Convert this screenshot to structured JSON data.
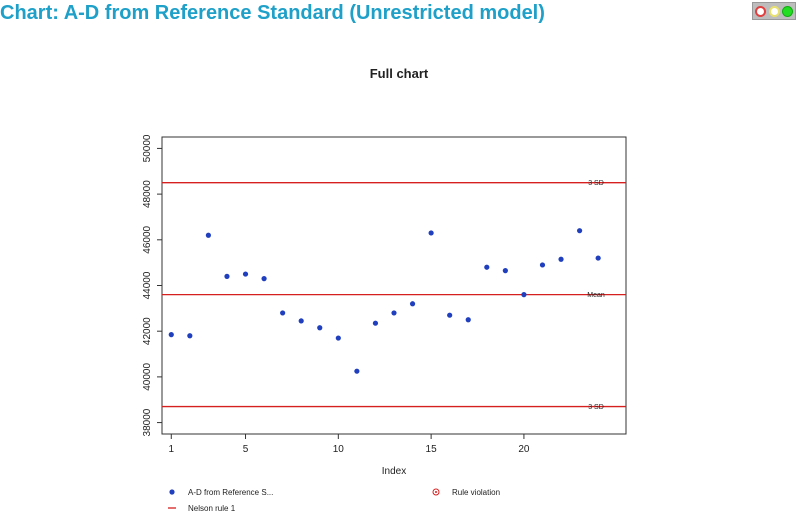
{
  "header": {
    "title": "Chart: A-D from Reference Standard (Unrestricted model)",
    "status_colors": [
      "#ffffff",
      "#ffffff",
      "#22dd22"
    ]
  },
  "chart_data": {
    "type": "scatter",
    "title": "Full chart",
    "xlabel": "Index",
    "ylabel": "",
    "xlim": [
      0.5,
      25.5
    ],
    "ylim": [
      37500,
      50500
    ],
    "x_ticks": [
      1,
      5,
      10,
      15,
      20
    ],
    "y_ticks": [
      38000,
      40000,
      42000,
      44000,
      46000,
      48000,
      50000
    ],
    "series": [
      {
        "name": "A-D from Reference S...",
        "color": "#1f3fbf",
        "x": [
          1,
          2,
          3,
          4,
          5,
          6,
          7,
          8,
          9,
          10,
          11,
          12,
          13,
          14,
          15,
          16,
          17,
          18,
          19,
          20,
          21,
          22,
          23,
          24
        ],
        "y": [
          41850,
          41800,
          46200,
          44400,
          44500,
          44300,
          42800,
          42450,
          42150,
          41700,
          40250,
          42350,
          42800,
          43200,
          46300,
          42700,
          42500,
          44800,
          44650,
          43600,
          44900,
          45150,
          46400,
          45200
        ]
      }
    ],
    "reference_lines": [
      {
        "label": "3 SD",
        "y": 48500,
        "color": "#d62020"
      },
      {
        "label": "Mean",
        "y": 43600,
        "color": "#d62020"
      },
      {
        "label": "3 SD",
        "y": 38700,
        "color": "#d62020"
      }
    ],
    "legend": [
      {
        "label": "A-D from Reference S...",
        "kind": "dot",
        "color": "#1f3fbf"
      },
      {
        "label": "Rule violation",
        "kind": "ring",
        "color": "#d62020"
      },
      {
        "label": "Nelson rule 1",
        "kind": "line",
        "color": "#d62020"
      }
    ],
    "legend_position": "bottom",
    "grid": false
  }
}
